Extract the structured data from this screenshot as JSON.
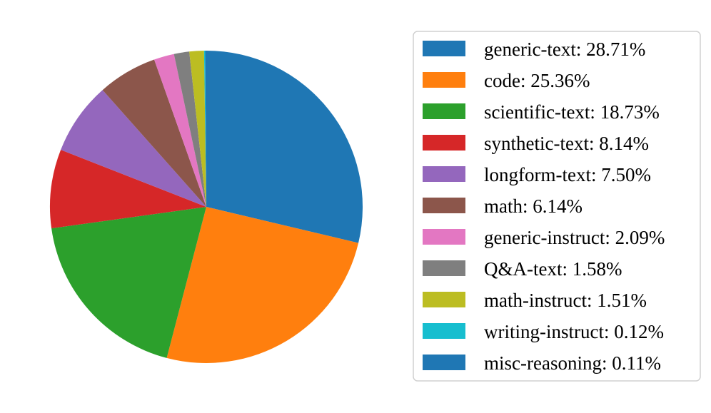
{
  "chart_data": {
    "type": "pie",
    "title": "",
    "start_angle_deg": 90,
    "direction": "clockwise",
    "legend_placement": "right",
    "slices": [
      {
        "label": "generic-text: 28.71%",
        "value": 28.71,
        "color": "#1f77b4"
      },
      {
        "label": "code: 25.36%",
        "value": 25.36,
        "color": "#ff7f0e"
      },
      {
        "label": "scientific-text: 18.73%",
        "value": 18.73,
        "color": "#2ca02c"
      },
      {
        "label": "synthetic-text: 8.14%",
        "value": 8.14,
        "color": "#d62728"
      },
      {
        "label": "longform-text: 7.50%",
        "value": 7.5,
        "color": "#9467bd"
      },
      {
        "label": "math: 6.14%",
        "value": 6.14,
        "color": "#8c564b"
      },
      {
        "label": "generic-instruct: 2.09%",
        "value": 2.09,
        "color": "#e377c2"
      },
      {
        "label": "Q&A-text: 1.58%",
        "value": 1.58,
        "color": "#7f7f7f"
      },
      {
        "label": "math-instruct: 1.51%",
        "value": 1.51,
        "color": "#bcbd22"
      },
      {
        "label": "writing-instruct: 0.12%",
        "value": 0.12,
        "color": "#17becf"
      },
      {
        "label": "misc-reasoning: 0.11%",
        "value": 0.11,
        "color": "#1f77b4"
      }
    ]
  }
}
